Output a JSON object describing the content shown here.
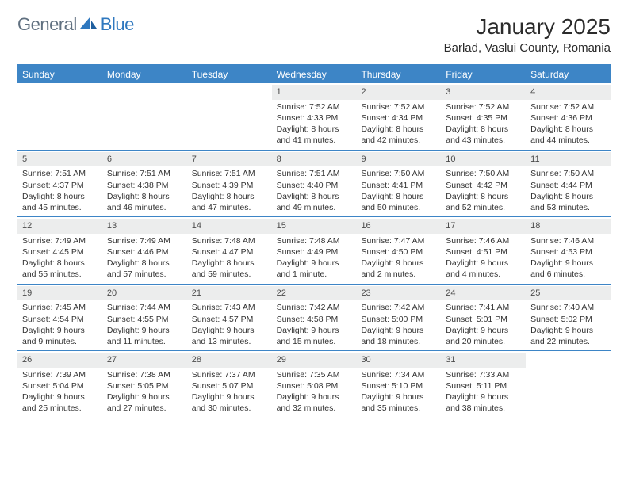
{
  "logo": {
    "general": "General",
    "blue": "Blue"
  },
  "title": "January 2025",
  "location": "Barlad, Vaslui County, Romania",
  "colors": {
    "header_bg": "#3d85c6",
    "header_text": "#ffffff",
    "numbar_bg": "#eceded",
    "body_text": "#333333",
    "logo_gray": "#607080",
    "logo_blue": "#2f78bf",
    "page_bg": "#ffffff"
  },
  "typography": {
    "month_title_pt": 28,
    "location_pt": 15,
    "dow_pt": 12,
    "cell_pt": 10.5,
    "logo_pt": 22
  },
  "dow": [
    "Sunday",
    "Monday",
    "Tuesday",
    "Wednesday",
    "Thursday",
    "Friday",
    "Saturday"
  ],
  "weeks": [
    [
      {
        "n": "",
        "sr": "",
        "ss": "",
        "dl": ""
      },
      {
        "n": "",
        "sr": "",
        "ss": "",
        "dl": ""
      },
      {
        "n": "",
        "sr": "",
        "ss": "",
        "dl": ""
      },
      {
        "n": "1",
        "sr": "Sunrise: 7:52 AM",
        "ss": "Sunset: 4:33 PM",
        "dl": "Daylight: 8 hours and 41 minutes."
      },
      {
        "n": "2",
        "sr": "Sunrise: 7:52 AM",
        "ss": "Sunset: 4:34 PM",
        "dl": "Daylight: 8 hours and 42 minutes."
      },
      {
        "n": "3",
        "sr": "Sunrise: 7:52 AM",
        "ss": "Sunset: 4:35 PM",
        "dl": "Daylight: 8 hours and 43 minutes."
      },
      {
        "n": "4",
        "sr": "Sunrise: 7:52 AM",
        "ss": "Sunset: 4:36 PM",
        "dl": "Daylight: 8 hours and 44 minutes."
      }
    ],
    [
      {
        "n": "5",
        "sr": "Sunrise: 7:51 AM",
        "ss": "Sunset: 4:37 PM",
        "dl": "Daylight: 8 hours and 45 minutes."
      },
      {
        "n": "6",
        "sr": "Sunrise: 7:51 AM",
        "ss": "Sunset: 4:38 PM",
        "dl": "Daylight: 8 hours and 46 minutes."
      },
      {
        "n": "7",
        "sr": "Sunrise: 7:51 AM",
        "ss": "Sunset: 4:39 PM",
        "dl": "Daylight: 8 hours and 47 minutes."
      },
      {
        "n": "8",
        "sr": "Sunrise: 7:51 AM",
        "ss": "Sunset: 4:40 PM",
        "dl": "Daylight: 8 hours and 49 minutes."
      },
      {
        "n": "9",
        "sr": "Sunrise: 7:50 AM",
        "ss": "Sunset: 4:41 PM",
        "dl": "Daylight: 8 hours and 50 minutes."
      },
      {
        "n": "10",
        "sr": "Sunrise: 7:50 AM",
        "ss": "Sunset: 4:42 PM",
        "dl": "Daylight: 8 hours and 52 minutes."
      },
      {
        "n": "11",
        "sr": "Sunrise: 7:50 AM",
        "ss": "Sunset: 4:44 PM",
        "dl": "Daylight: 8 hours and 53 minutes."
      }
    ],
    [
      {
        "n": "12",
        "sr": "Sunrise: 7:49 AM",
        "ss": "Sunset: 4:45 PM",
        "dl": "Daylight: 8 hours and 55 minutes."
      },
      {
        "n": "13",
        "sr": "Sunrise: 7:49 AM",
        "ss": "Sunset: 4:46 PM",
        "dl": "Daylight: 8 hours and 57 minutes."
      },
      {
        "n": "14",
        "sr": "Sunrise: 7:48 AM",
        "ss": "Sunset: 4:47 PM",
        "dl": "Daylight: 8 hours and 59 minutes."
      },
      {
        "n": "15",
        "sr": "Sunrise: 7:48 AM",
        "ss": "Sunset: 4:49 PM",
        "dl": "Daylight: 9 hours and 1 minute."
      },
      {
        "n": "16",
        "sr": "Sunrise: 7:47 AM",
        "ss": "Sunset: 4:50 PM",
        "dl": "Daylight: 9 hours and 2 minutes."
      },
      {
        "n": "17",
        "sr": "Sunrise: 7:46 AM",
        "ss": "Sunset: 4:51 PM",
        "dl": "Daylight: 9 hours and 4 minutes."
      },
      {
        "n": "18",
        "sr": "Sunrise: 7:46 AM",
        "ss": "Sunset: 4:53 PM",
        "dl": "Daylight: 9 hours and 6 minutes."
      }
    ],
    [
      {
        "n": "19",
        "sr": "Sunrise: 7:45 AM",
        "ss": "Sunset: 4:54 PM",
        "dl": "Daylight: 9 hours and 9 minutes."
      },
      {
        "n": "20",
        "sr": "Sunrise: 7:44 AM",
        "ss": "Sunset: 4:55 PM",
        "dl": "Daylight: 9 hours and 11 minutes."
      },
      {
        "n": "21",
        "sr": "Sunrise: 7:43 AM",
        "ss": "Sunset: 4:57 PM",
        "dl": "Daylight: 9 hours and 13 minutes."
      },
      {
        "n": "22",
        "sr": "Sunrise: 7:42 AM",
        "ss": "Sunset: 4:58 PM",
        "dl": "Daylight: 9 hours and 15 minutes."
      },
      {
        "n": "23",
        "sr": "Sunrise: 7:42 AM",
        "ss": "Sunset: 5:00 PM",
        "dl": "Daylight: 9 hours and 18 minutes."
      },
      {
        "n": "24",
        "sr": "Sunrise: 7:41 AM",
        "ss": "Sunset: 5:01 PM",
        "dl": "Daylight: 9 hours and 20 minutes."
      },
      {
        "n": "25",
        "sr": "Sunrise: 7:40 AM",
        "ss": "Sunset: 5:02 PM",
        "dl": "Daylight: 9 hours and 22 minutes."
      }
    ],
    [
      {
        "n": "26",
        "sr": "Sunrise: 7:39 AM",
        "ss": "Sunset: 5:04 PM",
        "dl": "Daylight: 9 hours and 25 minutes."
      },
      {
        "n": "27",
        "sr": "Sunrise: 7:38 AM",
        "ss": "Sunset: 5:05 PM",
        "dl": "Daylight: 9 hours and 27 minutes."
      },
      {
        "n": "28",
        "sr": "Sunrise: 7:37 AM",
        "ss": "Sunset: 5:07 PM",
        "dl": "Daylight: 9 hours and 30 minutes."
      },
      {
        "n": "29",
        "sr": "Sunrise: 7:35 AM",
        "ss": "Sunset: 5:08 PM",
        "dl": "Daylight: 9 hours and 32 minutes."
      },
      {
        "n": "30",
        "sr": "Sunrise: 7:34 AM",
        "ss": "Sunset: 5:10 PM",
        "dl": "Daylight: 9 hours and 35 minutes."
      },
      {
        "n": "31",
        "sr": "Sunrise: 7:33 AM",
        "ss": "Sunset: 5:11 PM",
        "dl": "Daylight: 9 hours and 38 minutes."
      },
      {
        "n": "",
        "sr": "",
        "ss": "",
        "dl": ""
      }
    ]
  ]
}
